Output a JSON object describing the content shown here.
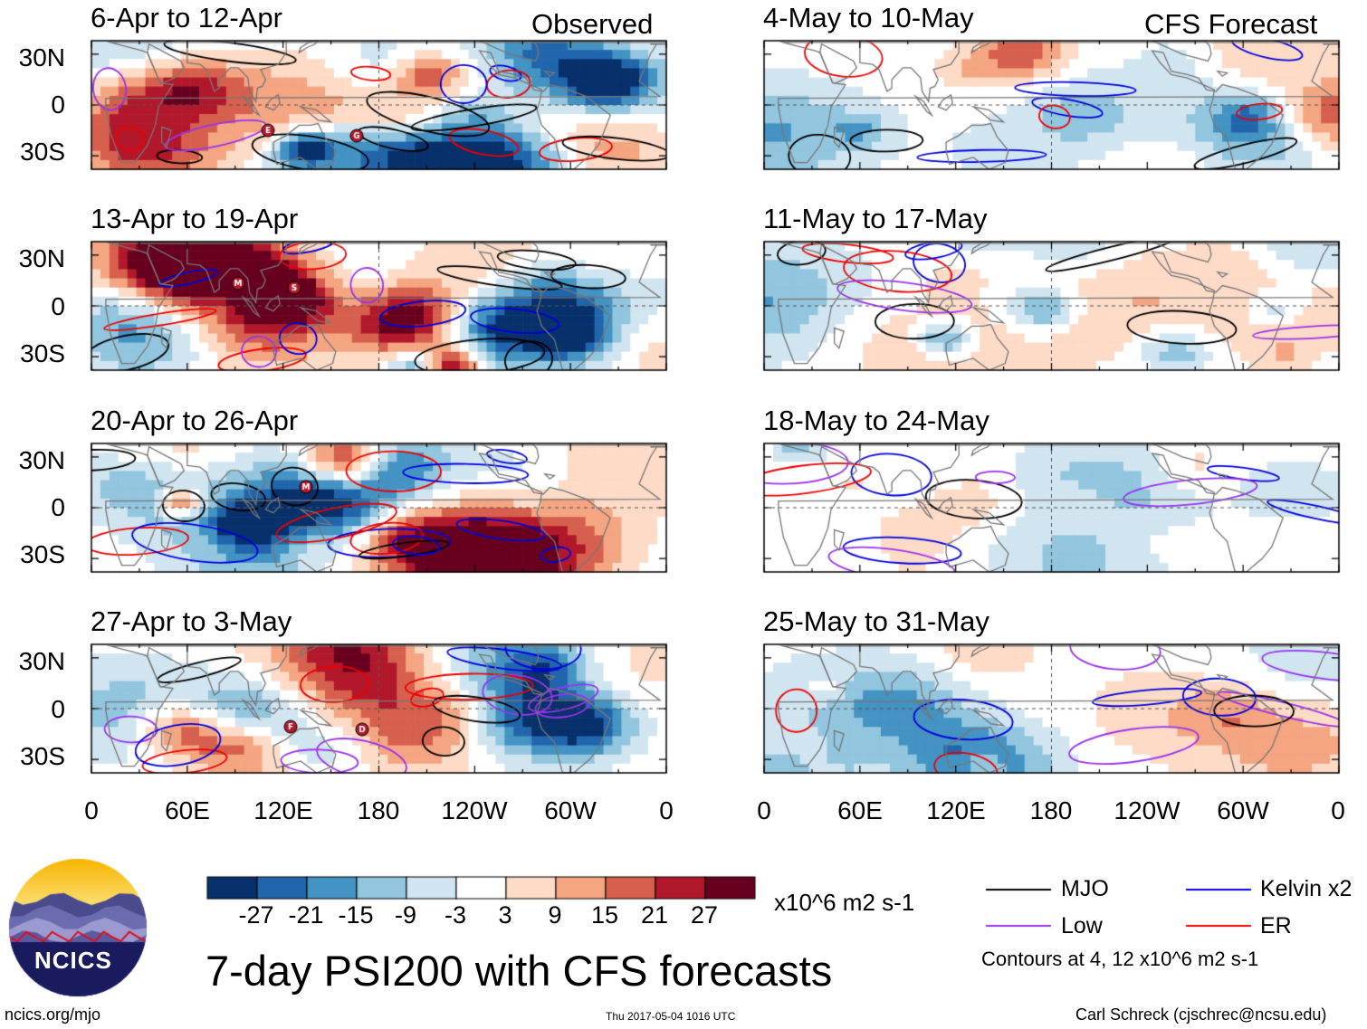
{
  "title": "7-day PSI200 with CFS forecasts",
  "observed_label": "Observed",
  "forecast_label": "CFS Forecast",
  "panels": [
    {
      "period": "6-Apr to 12-Apr",
      "kind": "observed",
      "seed": 11
    },
    {
      "period": "13-Apr to 19-Apr",
      "kind": "observed",
      "seed": 23
    },
    {
      "period": "20-Apr to 26-Apr",
      "kind": "observed",
      "seed": 37
    },
    {
      "period": "27-Apr to 3-May",
      "kind": "observed",
      "seed": 41
    },
    {
      "period": "4-May to 10-May",
      "kind": "forecast",
      "seed": 53
    },
    {
      "period": "11-May to 17-May",
      "kind": "forecast",
      "seed": 67
    },
    {
      "period": "18-May to 24-May",
      "kind": "forecast",
      "seed": 71
    },
    {
      "period": "25-May to 31-May",
      "kind": "forecast",
      "seed": 89
    }
  ],
  "lat_labels": [
    "30N",
    "0",
    "30S"
  ],
  "lon_labels": [
    "0",
    "60E",
    "120E",
    "180",
    "120W",
    "60W",
    "0"
  ],
  "colorbar": {
    "colors": [
      "#08306b",
      "#2166ac",
      "#4393c3",
      "#92c5de",
      "#d1e5f0",
      "#ffffff",
      "#fddbc7",
      "#f4a582",
      "#d6604d",
      "#b2182b",
      "#67001f"
    ],
    "labels": [
      "-27",
      "-21",
      "-15",
      "-9",
      "-3",
      "3",
      "9",
      "15",
      "21",
      "27"
    ],
    "units": "x10^6 m2 s-1"
  },
  "legend": [
    {
      "label": "MJO",
      "color": "#000000"
    },
    {
      "label": "Kelvin x2",
      "color": "#0000dd"
    },
    {
      "label": "Low",
      "color": "#9933ee"
    },
    {
      "label": "ER",
      "color": "#ee0000"
    }
  ],
  "contour_note": "Contours at 4, 12 x10^6 m2 s-1",
  "logo_text": "NCICS",
  "footer": {
    "left": "ncics.org/mjo",
    "center": "Thu 2017-05-04 1016 UTC",
    "right": "Carl Schreck (cjschrec@ncsu.edu)"
  },
  "storm_markers": [
    {
      "panel": 0,
      "letter": "E"
    },
    {
      "panel": 0,
      "letter": "G"
    },
    {
      "panel": 1,
      "letter": "M"
    },
    {
      "panel": 1,
      "letter": "S"
    },
    {
      "panel": 2,
      "letter": "M"
    },
    {
      "panel": 3,
      "letter": "F"
    },
    {
      "panel": 3,
      "letter": "D"
    }
  ]
}
